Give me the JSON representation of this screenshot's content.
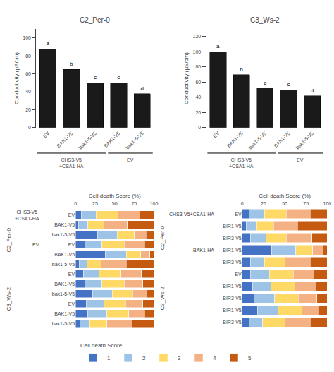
{
  "chart_data": [
    {
      "type": "bar",
      "title": "C2_Per-0",
      "ylabel": "Conductivity (µS/cm)",
      "categories": [
        "EV",
        "BAK1-V5",
        "bak1-5-V5",
        "BAK1-V5",
        "bak1-5-V5"
      ],
      "values": [
        88,
        65,
        50,
        50,
        38
      ],
      "letters": [
        "a",
        "b",
        "c",
        "c",
        "d"
      ],
      "color": "#1a1a1a",
      "ylim": [
        0,
        110
      ],
      "yticks": [
        0,
        20,
        40,
        60,
        80,
        100
      ],
      "grid": false,
      "groups": [
        {
          "label": "CHS3-V5\n+CSA1-HA",
          "size": 3
        },
        {
          "label": "EV",
          "size": 2
        }
      ]
    },
    {
      "type": "bar",
      "title": "C3_Ws-2",
      "ylabel": "Conductivity (µS/cm)",
      "categories": [
        "EV",
        "BAK1-V5",
        "bak1-5-V5",
        "BAK1-V5",
        "bak1-5-V5"
      ],
      "values": [
        100,
        70,
        52,
        50,
        42
      ],
      "letters": [
        "a",
        "b",
        "c",
        "c",
        "d"
      ],
      "color": "#1a1a1a",
      "ylim": [
        0,
        130
      ],
      "yticks": [
        0,
        20,
        40,
        60,
        80,
        100,
        120
      ],
      "grid": false,
      "groups": [
        {
          "label": "CHS3-V5\n+CSA1-HA",
          "size": 3
        },
        {
          "label": "EV",
          "size": 2
        }
      ]
    },
    {
      "type": "bar",
      "orientation": "horizontal",
      "stacked": true,
      "grid": false,
      "xlabel": "Cell death Score (%)",
      "xlim": [
        0,
        100
      ],
      "xticks": [
        0,
        25,
        50,
        75,
        100
      ],
      "categories": [
        "EV",
        "BAK1-V5",
        "bak1-5-V5",
        "EV",
        "BAK1-V5",
        "bak1-5-V5",
        "EV",
        "BAK1-V5",
        "bak1-5-V5",
        "EV",
        "BAK1-V5",
        "bak1-5-V5"
      ],
      "series": [
        {
          "color": "#4472C4",
          "values": [
            8,
            4,
            28,
            12,
            38,
            5,
            10,
            12,
            22,
            14,
            16,
            6
          ]
        },
        {
          "color": "#9DC3E6",
          "values": [
            18,
            12,
            25,
            22,
            27,
            10,
            20,
            22,
            25,
            22,
            24,
            12
          ]
        },
        {
          "color": "#FFD966",
          "values": [
            28,
            20,
            22,
            28,
            18,
            18,
            28,
            28,
            26,
            28,
            28,
            22
          ]
        },
        {
          "color": "#F4B183",
          "values": [
            28,
            30,
            15,
            26,
            12,
            32,
            26,
            24,
            18,
            22,
            20,
            32
          ]
        },
        {
          "color": "#C55A11",
          "values": [
            18,
            34,
            10,
            12,
            5,
            35,
            16,
            14,
            9,
            14,
            12,
            28
          ]
        }
      ],
      "sections": [
        {
          "label": "C2_Per-0",
          "size": 6
        },
        {
          "label": "C3_Ws-2",
          "size": 6
        }
      ],
      "annotations": [
        {
          "text": "CHS3-V5\n+CSA1-HA",
          "row": 0
        },
        {
          "text": "EV",
          "row": 3
        }
      ]
    },
    {
      "type": "bar",
      "orientation": "horizontal",
      "stacked": true,
      "grid": false,
      "xlabel": "Cell death Score (%)",
      "xlim": [
        0,
        100
      ],
      "xticks": [
        0,
        25,
        50,
        75,
        100
      ],
      "categories": [
        "EV",
        "BIR1-V5",
        "BIR3-V5",
        "BIR1-V5",
        "BIR3-V5",
        "EV",
        "BIR1-V5",
        "BIR3-V5",
        "BIR1-V5",
        "BIR3-V5"
      ],
      "series": [
        {
          "name": "1",
          "color": "#4472C4",
          "values": [
            8,
            5,
            10,
            35,
            10,
            10,
            12,
            14,
            18,
            8
          ]
        },
        {
          "name": "2",
          "color": "#9DC3E6",
          "values": [
            18,
            12,
            18,
            28,
            16,
            22,
            22,
            24,
            24,
            16
          ]
        },
        {
          "name": "3",
          "color": "#FFD966",
          "values": [
            26,
            20,
            24,
            20,
            24,
            28,
            28,
            28,
            28,
            26
          ]
        },
        {
          "name": "4",
          "color": "#F4B183",
          "values": [
            28,
            28,
            30,
            12,
            30,
            24,
            24,
            22,
            20,
            30
          ]
        },
        {
          "name": "5",
          "color": "#C55A11",
          "values": [
            20,
            35,
            18,
            5,
            20,
            16,
            14,
            12,
            10,
            20
          ]
        }
      ],
      "sections": [
        {
          "label": "C2_Per-0",
          "size": 5
        },
        {
          "label": "C3_Ws-2",
          "size": 5
        }
      ],
      "annotations": [
        {
          "text": "CHS3-V5+CSA1-HA",
          "row": 0
        },
        {
          "text": "BAK1-HA",
          "row": 3
        }
      ],
      "legend": "bottom",
      "legend_title": "Cell death Score"
    }
  ]
}
